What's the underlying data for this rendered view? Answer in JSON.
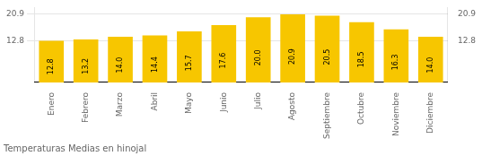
{
  "chart_data": {
    "type": "bar",
    "title": "Temperaturas Medias en hinojal",
    "categories": [
      "Enero",
      "Febrero",
      "Marzo",
      "Abril",
      "Mayo",
      "Junio",
      "Julio",
      "Agosto",
      "Septiembre",
      "Octubre",
      "Noviembre",
      "Diciembre"
    ],
    "values": [
      12.8,
      13.2,
      14.0,
      14.4,
      15.7,
      17.6,
      20.0,
      20.9,
      20.5,
      18.5,
      16.3,
      14.0
    ],
    "value_labels": [
      "12.8",
      "13.2",
      "14.0",
      "14.4",
      "15.7",
      "17.6",
      "20.0",
      "20.9",
      "20.5",
      "18.5",
      "16.3",
      "14.0"
    ],
    "color": "#F7C600",
    "ylim": [
      0,
      22.99
    ],
    "yticks": [
      12.8,
      20.9
    ],
    "grid": true,
    "data_labels": true
  }
}
